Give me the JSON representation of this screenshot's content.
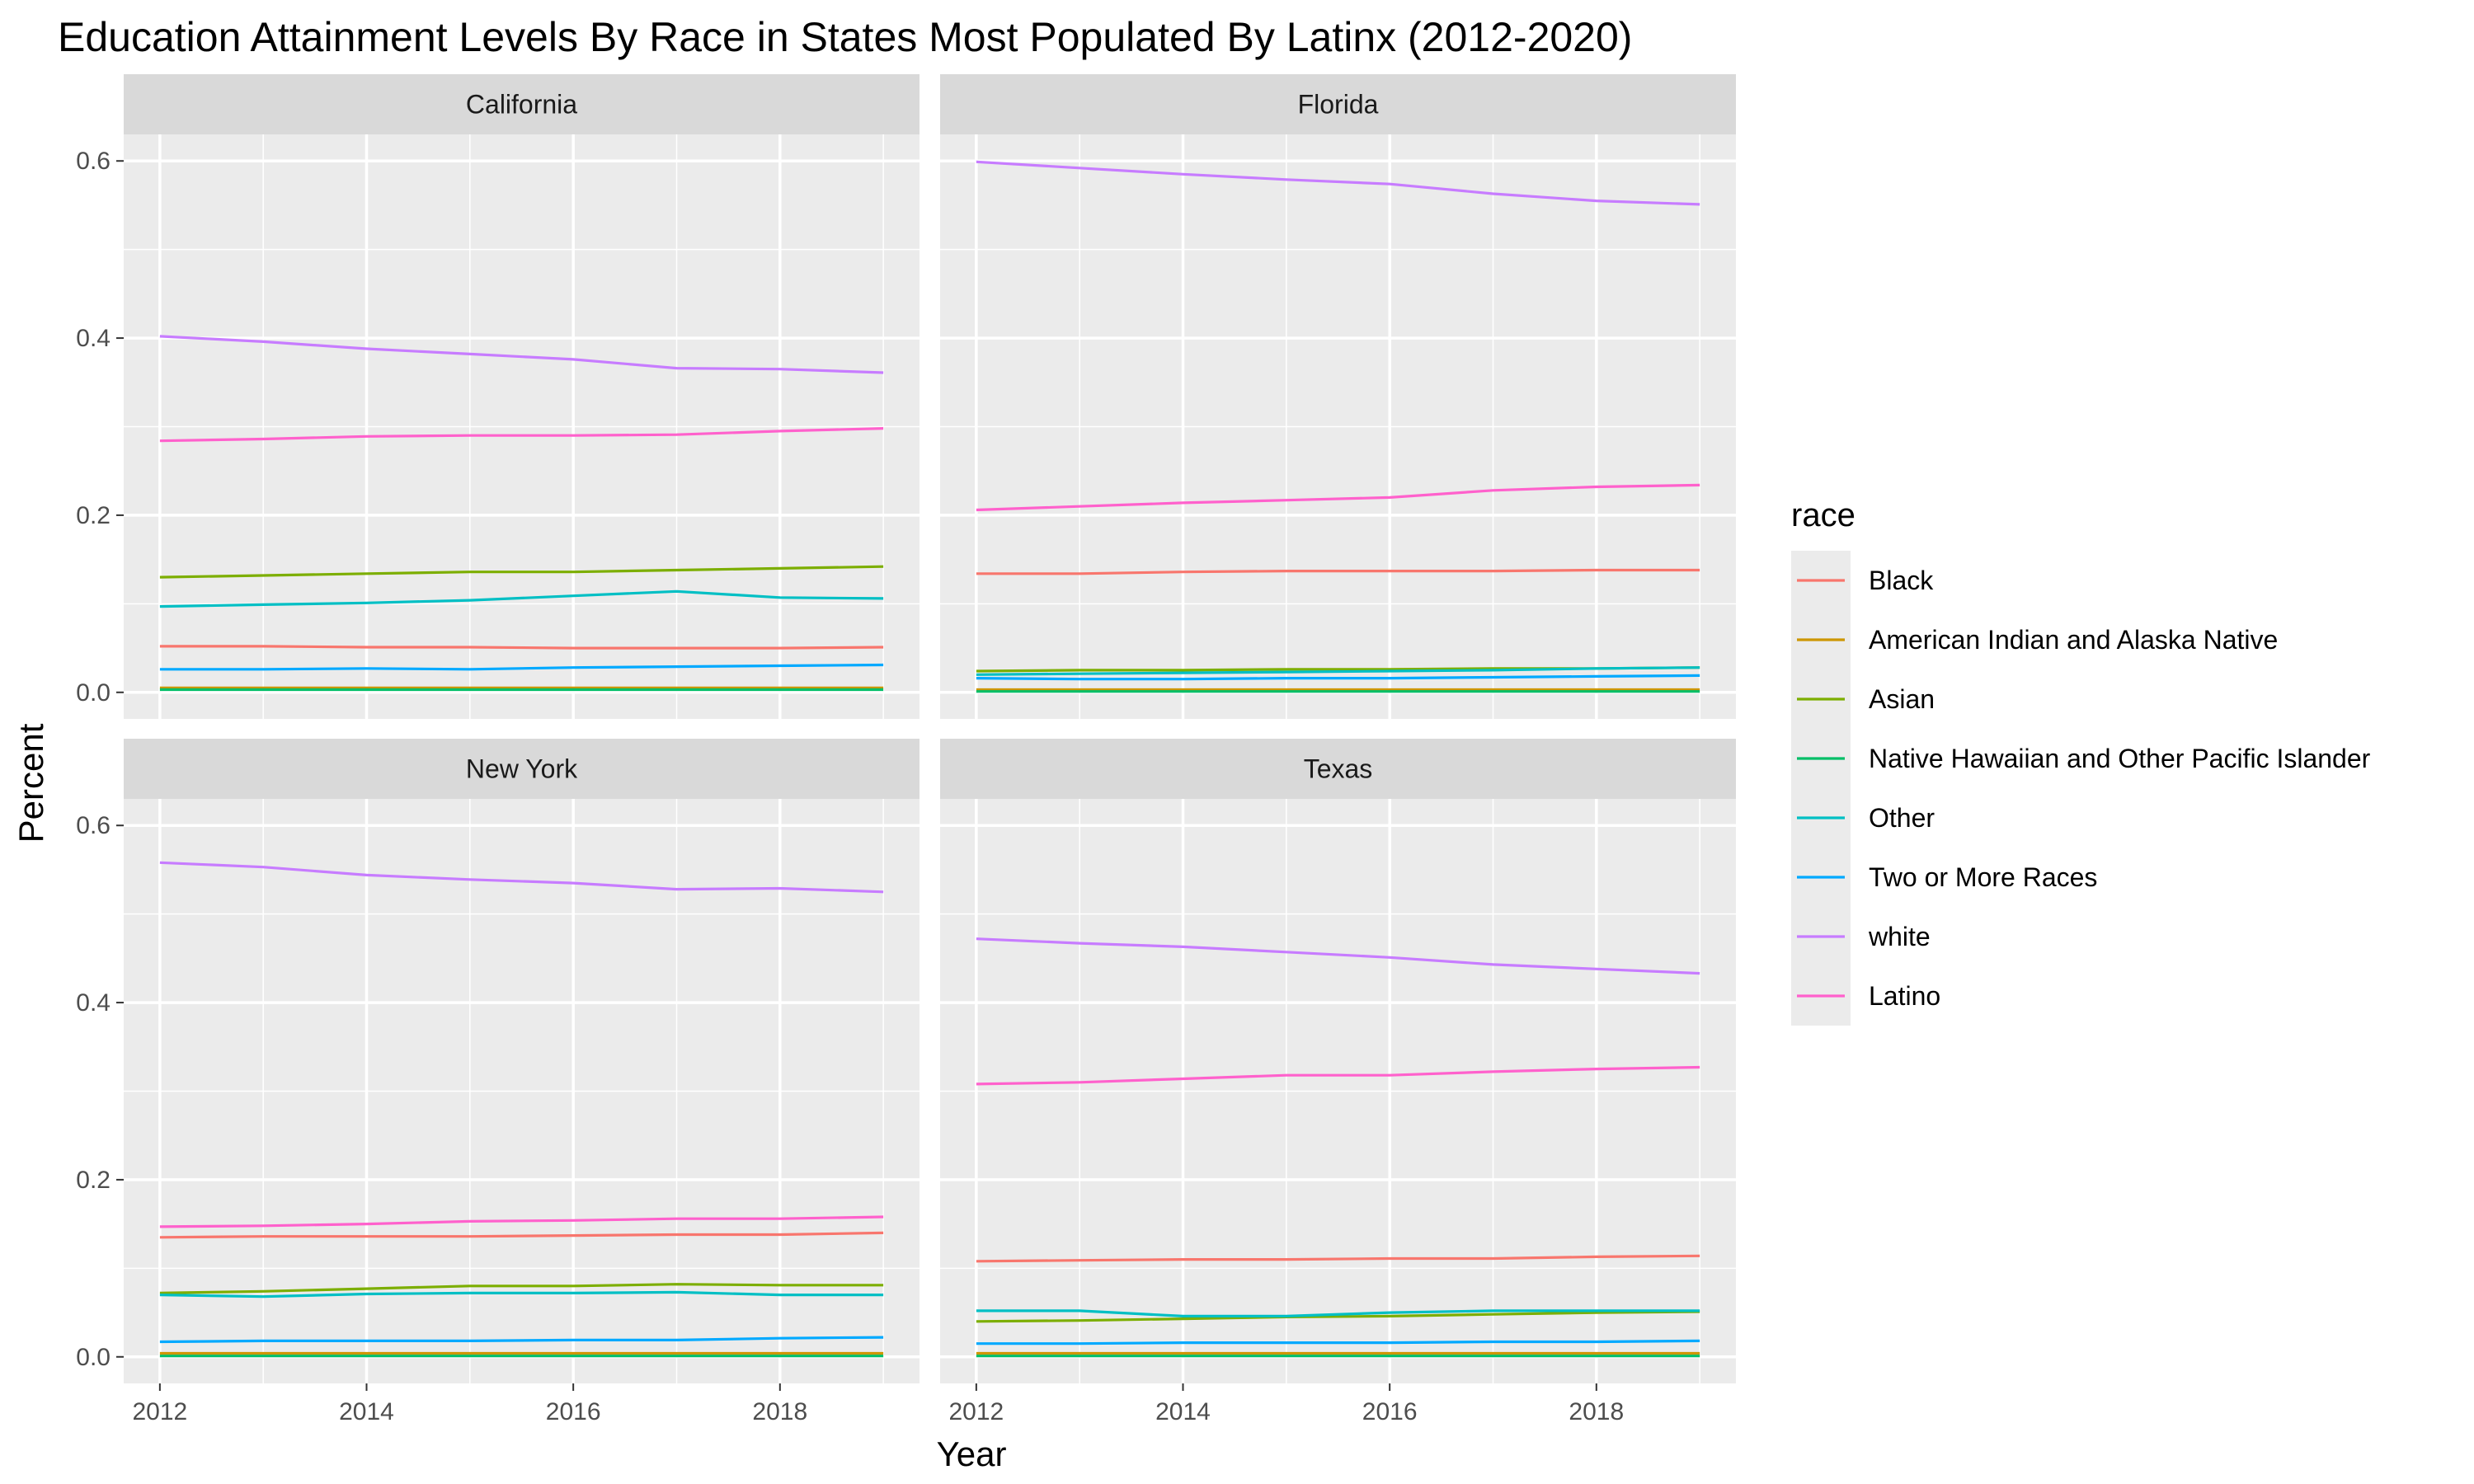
{
  "chart_data": {
    "type": "line",
    "title": "Education Attainment Levels By Race in States Most Populated By Latinx (2012-2020)",
    "xlabel": "Year",
    "ylabel": "Percent",
    "xlim": [
      2011.65,
      2019.35
    ],
    "ylim": [
      -0.03,
      0.63
    ],
    "x_ticks": [
      2012,
      2014,
      2016,
      2018
    ],
    "y_ticks": [
      0.0,
      0.2,
      0.4,
      0.6
    ],
    "y_tick_labels": [
      "0.0",
      "0.2",
      "0.4",
      "0.6"
    ],
    "x": [
      2012,
      2013,
      2014,
      2015,
      2016,
      2017,
      2018,
      2019
    ],
    "legend": {
      "title": "race",
      "position": "right"
    },
    "grid": true,
    "series_colors": {
      "Black": "#F8766D",
      "American Indian and Alaska Native": "#CD9600",
      "Asian": "#7CAE00",
      "Native Hawaiian and Other Pacific Islander": "#00BE67",
      "Other": "#00BFC4",
      "Two or More Races": "#00A9FF",
      "white": "#C77CFF",
      "Latino": "#FF61CC"
    },
    "series_order": [
      "Black",
      "American Indian and Alaska Native",
      "Asian",
      "Native Hawaiian and Other Pacific Islander",
      "Other",
      "Two or More Races",
      "white",
      "Latino"
    ],
    "panels": [
      {
        "facet": "California",
        "series": [
          {
            "name": "Black",
            "values": [
              0.052,
              0.052,
              0.051,
              0.051,
              0.05,
              0.05,
              0.05,
              0.051
            ]
          },
          {
            "name": "American Indian and Alaska Native",
            "values": [
              0.005,
              0.005,
              0.005,
              0.005,
              0.005,
              0.005,
              0.005,
              0.005
            ]
          },
          {
            "name": "Asian",
            "values": [
              0.13,
              0.132,
              0.134,
              0.136,
              0.136,
              0.138,
              0.14,
              0.142
            ]
          },
          {
            "name": "Native Hawaiian and Other Pacific Islander",
            "values": [
              0.003,
              0.003,
              0.003,
              0.003,
              0.003,
              0.003,
              0.003,
              0.003
            ]
          },
          {
            "name": "Other",
            "values": [
              0.097,
              0.099,
              0.101,
              0.104,
              0.109,
              0.114,
              0.107,
              0.106
            ]
          },
          {
            "name": "Two or More Races",
            "values": [
              0.026,
              0.026,
              0.027,
              0.026,
              0.028,
              0.029,
              0.03,
              0.031
            ]
          },
          {
            "name": "white",
            "values": [
              0.402,
              0.396,
              0.388,
              0.382,
              0.376,
              0.366,
              0.365,
              0.361
            ]
          },
          {
            "name": "Latino",
            "values": [
              0.284,
              0.286,
              0.289,
              0.29,
              0.29,
              0.291,
              0.295,
              0.298
            ]
          }
        ]
      },
      {
        "facet": "Florida",
        "series": [
          {
            "name": "Black",
            "values": [
              0.134,
              0.134,
              0.136,
              0.137,
              0.137,
              0.137,
              0.138,
              0.138
            ]
          },
          {
            "name": "American Indian and Alaska Native",
            "values": [
              0.003,
              0.003,
              0.003,
              0.003,
              0.003,
              0.003,
              0.003,
              0.003
            ]
          },
          {
            "name": "Asian",
            "values": [
              0.024,
              0.025,
              0.025,
              0.026,
              0.026,
              0.027,
              0.027,
              0.028
            ]
          },
          {
            "name": "Native Hawaiian and Other Pacific Islander",
            "values": [
              0.001,
              0.001,
              0.001,
              0.001,
              0.001,
              0.001,
              0.001,
              0.001
            ]
          },
          {
            "name": "Other",
            "values": [
              0.02,
              0.021,
              0.022,
              0.023,
              0.024,
              0.025,
              0.027,
              0.028
            ]
          },
          {
            "name": "Two or More Races",
            "values": [
              0.016,
              0.015,
              0.015,
              0.016,
              0.016,
              0.017,
              0.018,
              0.019
            ]
          },
          {
            "name": "white",
            "values": [
              0.599,
              0.592,
              0.585,
              0.579,
              0.574,
              0.563,
              0.555,
              0.551
            ]
          },
          {
            "name": "Latino",
            "values": [
              0.206,
              0.21,
              0.214,
              0.217,
              0.22,
              0.228,
              0.232,
              0.234
            ]
          }
        ]
      },
      {
        "facet": "New York",
        "series": [
          {
            "name": "Black",
            "values": [
              0.135,
              0.136,
              0.136,
              0.136,
              0.137,
              0.138,
              0.138,
              0.14
            ]
          },
          {
            "name": "American Indian and Alaska Native",
            "values": [
              0.004,
              0.004,
              0.004,
              0.004,
              0.004,
              0.004,
              0.004,
              0.004
            ]
          },
          {
            "name": "Asian",
            "values": [
              0.072,
              0.074,
              0.077,
              0.08,
              0.08,
              0.082,
              0.081,
              0.081
            ]
          },
          {
            "name": "Native Hawaiian and Other Pacific Islander",
            "values": [
              0.001,
              0.001,
              0.001,
              0.001,
              0.001,
              0.001,
              0.001,
              0.001
            ]
          },
          {
            "name": "Other",
            "values": [
              0.07,
              0.068,
              0.071,
              0.072,
              0.072,
              0.073,
              0.07,
              0.07
            ]
          },
          {
            "name": "Two or More Races",
            "values": [
              0.017,
              0.018,
              0.018,
              0.018,
              0.019,
              0.019,
              0.021,
              0.022
            ]
          },
          {
            "name": "white",
            "values": [
              0.558,
              0.553,
              0.544,
              0.539,
              0.535,
              0.528,
              0.529,
              0.525
            ]
          },
          {
            "name": "Latino",
            "values": [
              0.147,
              0.148,
              0.15,
              0.153,
              0.154,
              0.156,
              0.156,
              0.158
            ]
          }
        ]
      },
      {
        "facet": "Texas",
        "series": [
          {
            "name": "Black",
            "values": [
              0.108,
              0.109,
              0.11,
              0.11,
              0.111,
              0.111,
              0.113,
              0.114
            ]
          },
          {
            "name": "American Indian and Alaska Native",
            "values": [
              0.004,
              0.004,
              0.004,
              0.004,
              0.004,
              0.004,
              0.004,
              0.004
            ]
          },
          {
            "name": "Asian",
            "values": [
              0.04,
              0.041,
              0.043,
              0.045,
              0.046,
              0.048,
              0.05,
              0.051
            ]
          },
          {
            "name": "Native Hawaiian and Other Pacific Islander",
            "values": [
              0.001,
              0.001,
              0.001,
              0.001,
              0.001,
              0.001,
              0.001,
              0.001
            ]
          },
          {
            "name": "Other",
            "values": [
              0.052,
              0.052,
              0.046,
              0.046,
              0.05,
              0.052,
              0.052,
              0.052
            ]
          },
          {
            "name": "Two or More Races",
            "values": [
              0.015,
              0.015,
              0.016,
              0.016,
              0.016,
              0.017,
              0.017,
              0.018
            ]
          },
          {
            "name": "white",
            "values": [
              0.472,
              0.467,
              0.463,
              0.457,
              0.451,
              0.443,
              0.438,
              0.433
            ]
          },
          {
            "name": "Latino",
            "values": [
              0.308,
              0.31,
              0.314,
              0.318,
              0.318,
              0.322,
              0.325,
              0.327
            ]
          }
        ]
      }
    ]
  }
}
